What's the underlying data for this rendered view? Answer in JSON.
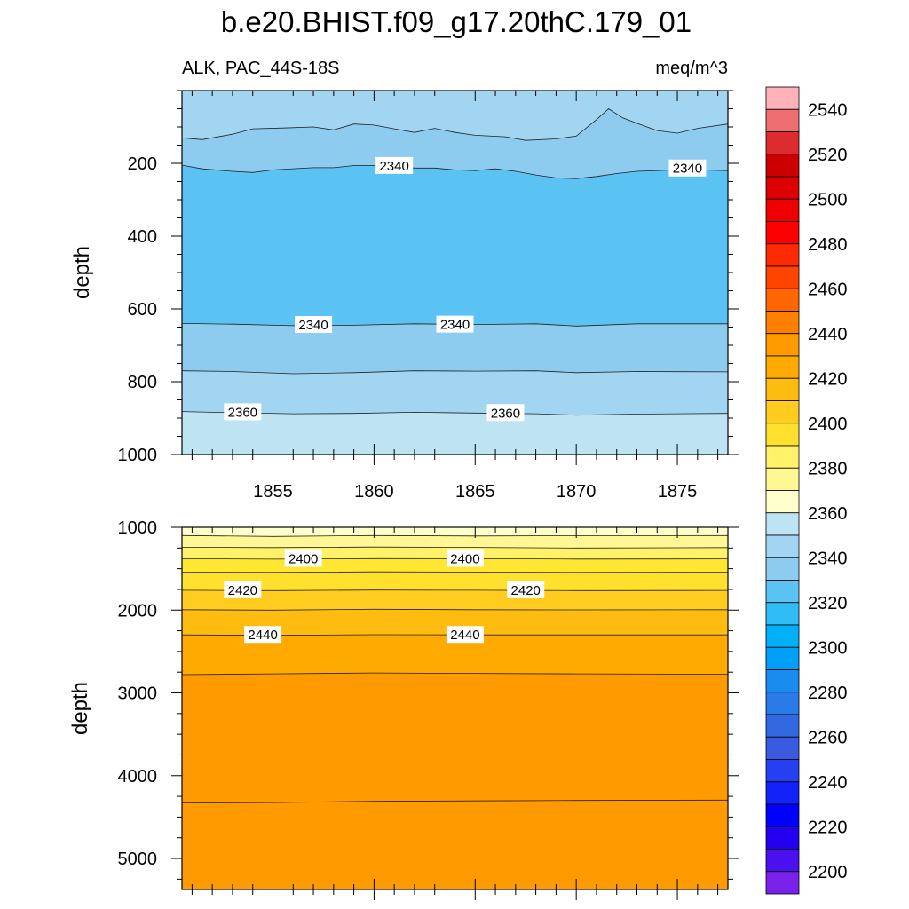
{
  "figure": {
    "title": "b.e20.BHIST.f09_g17.20thC.179_01",
    "left_subtitle": "ALK, PAC_44S-18S",
    "right_subtitle": "meq/m^3"
  },
  "chart_data": [
    {
      "type": "contour",
      "panel": "upper",
      "xlabel": "",
      "ylabel": "depth",
      "xlim": [
        1850.5,
        1877.5
      ],
      "ylim": [
        0,
        1000
      ],
      "y_inverted": true,
      "x_ticks": [
        "1855",
        "1860",
        "1865",
        "1870",
        "1875"
      ],
      "y_ticks": [
        "200",
        "400",
        "600",
        "800",
        "1000"
      ],
      "bands": [
        {
          "fill_value": 2350,
          "color": "#a2d5f2",
          "top": [
            [
              1850.5,
              0
            ],
            [
              1877.5,
              0
            ]
          ],
          "bottom": "line1"
        },
        {
          "fill_value": 2340,
          "color": "#8dcbef",
          "top": "line1",
          "bottom": "line2"
        },
        {
          "fill_value": 2330,
          "color": "#5bc3f3",
          "top": "line2",
          "bottom": "line3"
        },
        {
          "fill_value": 2340,
          "color": "#8dcbef",
          "top": "line3",
          "bottom": "line4"
        },
        {
          "fill_value": 2350,
          "color": "#a2d5f2",
          "top": "line4",
          "bottom": "line5"
        },
        {
          "fill_value": 2360,
          "color": "#bee3f3",
          "top": "line5",
          "bottom": [
            [
              1850.5,
              1000
            ],
            [
              1877.5,
              1000
            ]
          ]
        }
      ],
      "contour_lines": {
        "line1": {
          "level": 2350,
          "points": [
            [
              1850.5,
              130
            ],
            [
              1851.5,
              135
            ],
            [
              1853,
              120
            ],
            [
              1854,
              105
            ],
            [
              1855.5,
              103
            ],
            [
              1857,
              100
            ],
            [
              1858,
              108
            ],
            [
              1859,
              92
            ],
            [
              1860,
              95
            ],
            [
              1861,
              105
            ],
            [
              1862,
              115
            ],
            [
              1863,
              104
            ],
            [
              1864,
              115
            ],
            [
              1865,
              123
            ],
            [
              1866.5,
              127
            ],
            [
              1867.5,
              137
            ],
            [
              1869,
              133
            ],
            [
              1870,
              125
            ],
            [
              1871,
              80
            ],
            [
              1871.6,
              50
            ],
            [
              1872.3,
              75
            ],
            [
              1873,
              90
            ],
            [
              1874,
              110
            ],
            [
              1875,
              117
            ],
            [
              1876,
              104
            ],
            [
              1877.5,
              92
            ]
          ]
        },
        "line2": {
          "level": 2340,
          "points": [
            [
              1850.5,
              205
            ],
            [
              1851.5,
              215
            ],
            [
              1853,
              222
            ],
            [
              1854,
              225
            ],
            [
              1855,
              218
            ],
            [
              1857,
              212
            ],
            [
              1858,
              212
            ],
            [
              1859,
              206
            ],
            [
              1860,
              206
            ],
            [
              1861,
              208
            ],
            [
              1862,
              213
            ],
            [
              1863,
              213
            ],
            [
              1864,
              218
            ],
            [
              1865,
              220
            ],
            [
              1866,
              215
            ],
            [
              1867,
              222
            ],
            [
              1868,
              232
            ],
            [
              1869,
              240
            ],
            [
              1870,
              242
            ],
            [
              1871,
              236
            ],
            [
              1872,
              228
            ],
            [
              1873,
              222
            ],
            [
              1875,
              218
            ],
            [
              1876,
              218
            ],
            [
              1877.5,
              220
            ]
          ]
        },
        "line3": {
          "level": 2340,
          "points": [
            [
              1850.5,
              640
            ],
            [
              1853,
              642
            ],
            [
              1856,
              646
            ],
            [
              1859,
              645
            ],
            [
              1862,
              641
            ],
            [
              1865,
              643
            ],
            [
              1868,
              641
            ],
            [
              1870,
              647
            ],
            [
              1873,
              641
            ],
            [
              1877.5,
              641
            ]
          ]
        },
        "line4": {
          "level": 2350,
          "points": [
            [
              1850.5,
              770
            ],
            [
              1853,
              772
            ],
            [
              1856,
              778
            ],
            [
              1859,
              775
            ],
            [
              1862,
              770
            ],
            [
              1865,
              771
            ],
            [
              1868,
              770
            ],
            [
              1870,
              775
            ],
            [
              1873,
              772
            ],
            [
              1877.5,
              773
            ]
          ]
        },
        "line5": {
          "level": 2360,
          "points": [
            [
              1850.5,
              882
            ],
            [
              1853,
              885
            ],
            [
              1856,
              888
            ],
            [
              1859,
              887
            ],
            [
              1862,
              884
            ],
            [
              1865,
              886
            ],
            [
              1868,
              888
            ],
            [
              1870,
              892
            ],
            [
              1873,
              889
            ],
            [
              1877.5,
              887
            ]
          ]
        }
      },
      "labels": [
        {
          "text": "2340",
          "x": 1861,
          "y": 207
        },
        {
          "text": "2340",
          "x": 1875.5,
          "y": 214
        },
        {
          "text": "2340",
          "x": 1857,
          "y": 644
        },
        {
          "text": "2340",
          "x": 1864,
          "y": 643
        },
        {
          "text": "2360",
          "x": 1853.5,
          "y": 884
        },
        {
          "text": "2360",
          "x": 1866.5,
          "y": 886
        }
      ]
    },
    {
      "type": "contour",
      "panel": "lower",
      "xlabel": "",
      "ylabel": "depth",
      "xlim": [
        1850.5,
        1877.5
      ],
      "ylim": [
        1000,
        5375
      ],
      "y_inverted": true,
      "x_ticks": [],
      "y_ticks": [
        "1000",
        "2000",
        "3000",
        "4000",
        "5000"
      ],
      "bands": [
        {
          "fill_value": 2385,
          "color": "#ffffcc",
          "top": [
            [
              1850.5,
              1000
            ],
            [
              1877.5,
              1000
            ]
          ],
          "bottom": "l1"
        },
        {
          "fill_value": 2390,
          "color": "#fff793",
          "top": "l1",
          "bottom": "l2"
        },
        {
          "fill_value": 2395,
          "color": "#fff26b",
          "top": "l2",
          "bottom": "l3"
        },
        {
          "fill_value": 2400,
          "color": "#ffe630",
          "top": "l3",
          "bottom": "l4"
        },
        {
          "fill_value": 2405,
          "color": "#ffe12d",
          "top": "l4",
          "bottom": "l5"
        },
        {
          "fill_value": 2415,
          "color": "#ffcc1f",
          "top": "l5",
          "bottom": "l6"
        },
        {
          "fill_value": 2425,
          "color": "#ffbc10",
          "top": "l6",
          "bottom": "l7"
        },
        {
          "fill_value": 2435,
          "color": "#ffaa00",
          "top": "l7",
          "bottom": "l8"
        },
        {
          "fill_value": 2445,
          "color": "#ff9a00",
          "top": "l8",
          "bottom": "l9"
        },
        {
          "fill_value": 2455,
          "color": "#ff7f00",
          "top": "l9",
          "bottom": "l10"
        },
        {
          "fill_value": 2445,
          "color": "#ff9a00",
          "top": "l10",
          "bottom": [
            [
              1850.5,
              5375
            ],
            [
              1877.5,
              5375
            ]
          ]
        }
      ],
      "contour_lines": {
        "l1": {
          "level": 2390,
          "points": [
            [
              1850.5,
              1100
            ],
            [
              1855,
              1110
            ],
            [
              1860,
              1100
            ],
            [
              1865,
              1105
            ],
            [
              1870,
              1102
            ],
            [
              1877.5,
              1100
            ]
          ]
        },
        "l2": {
          "level": 2395,
          "points": [
            [
              1850.5,
              1240
            ],
            [
              1855,
              1245
            ],
            [
              1860,
              1238
            ],
            [
              1865,
              1242
            ],
            [
              1870,
              1250
            ],
            [
              1877.5,
              1245
            ]
          ]
        },
        "l3": {
          "level": 2400,
          "points": [
            [
              1850.5,
              1380
            ],
            [
              1855,
              1385
            ],
            [
              1860,
              1378
            ],
            [
              1865,
              1380
            ],
            [
              1870,
              1384
            ],
            [
              1877.5,
              1382
            ]
          ]
        },
        "l4": {
          "level": 2410,
          "points": [
            [
              1850.5,
              1540
            ],
            [
              1855,
              1545
            ],
            [
              1860,
              1538
            ],
            [
              1865,
              1540
            ],
            [
              1870,
              1545
            ],
            [
              1877.5,
              1542
            ]
          ]
        },
        "l5": {
          "level": 2420,
          "points": [
            [
              1850.5,
              1760
            ],
            [
              1855,
              1765
            ],
            [
              1860,
              1758
            ],
            [
              1865,
              1760
            ],
            [
              1870,
              1765
            ],
            [
              1877.5,
              1762
            ]
          ]
        },
        "l6": {
          "level": 2430,
          "points": [
            [
              1850.5,
              1995
            ],
            [
              1855,
              2000
            ],
            [
              1860,
              1990
            ],
            [
              1865,
              1995
            ],
            [
              1870,
              1997
            ],
            [
              1877.5,
              1995
            ]
          ]
        },
        "l7": {
          "level": 2440,
          "points": [
            [
              1850.5,
              2300
            ],
            [
              1855,
              2305
            ],
            [
              1860,
              2298
            ],
            [
              1865,
              2300
            ],
            [
              1870,
              2300
            ],
            [
              1877.5,
              2300
            ]
          ]
        },
        "l8": {
          "level": 2450,
          "points": [
            [
              1850.5,
              2780
            ],
            [
              1855,
              2770
            ],
            [
              1860,
              2760
            ],
            [
              1865,
              2765
            ],
            [
              1870,
              2770
            ],
            [
              1877.5,
              2775
            ]
          ]
        },
        "l9": {
          "level": 2450,
          "points": [
            [
              1850.5,
              4330
            ],
            [
              1855,
              4325
            ],
            [
              1860,
              4310
            ],
            [
              1865,
              4305
            ],
            [
              1870,
              4300
            ],
            [
              1877.5,
              4295
            ]
          ]
        }
      },
      "boundary_aliases": {
        "l10": "l9"
      },
      "labels": [
        {
          "text": "2400",
          "x": 1856.5,
          "y": 1380
        },
        {
          "text": "2400",
          "x": 1864.5,
          "y": 1380
        },
        {
          "text": "2420",
          "x": 1853.5,
          "y": 1760
        },
        {
          "text": "2420",
          "x": 1867.5,
          "y": 1760
        },
        {
          "text": "2440",
          "x": 1854.5,
          "y": 2300
        },
        {
          "text": "2440",
          "x": 1864.5,
          "y": 2300
        }
      ]
    }
  ],
  "colorbar": {
    "labels": [
      "2200",
      "2220",
      "2240",
      "2260",
      "2280",
      "2300",
      "2320",
      "2340",
      "2360",
      "2380",
      "2400",
      "2420",
      "2440",
      "2460",
      "2480",
      "2500",
      "2520",
      "2540"
    ],
    "swatches_top_to_bottom": [
      "#ffb3b8",
      "#ee6e71",
      "#dd2c30",
      "#cc0000",
      "#dd0000",
      "#ee0000",
      "#ff0000",
      "#ff2a00",
      "#ff4400",
      "#ff6600",
      "#ff7f00",
      "#ff9a00",
      "#ffaa00",
      "#ffbc10",
      "#ffcc1f",
      "#ffe12d",
      "#fff26b",
      "#fff793",
      "#ffffcc",
      "#bee3f3",
      "#a2d5f2",
      "#8dcbef",
      "#5bc3f3",
      "#2ebdf7",
      "#00b0f8",
      "#00a0f8",
      "#1a8cf0",
      "#2a7ae8",
      "#3268e0",
      "#3a5ae0",
      "#2440f0",
      "#1222f8",
      "#0000ff",
      "#2400f0",
      "#4a10ee",
      "#7a22ea"
    ]
  }
}
